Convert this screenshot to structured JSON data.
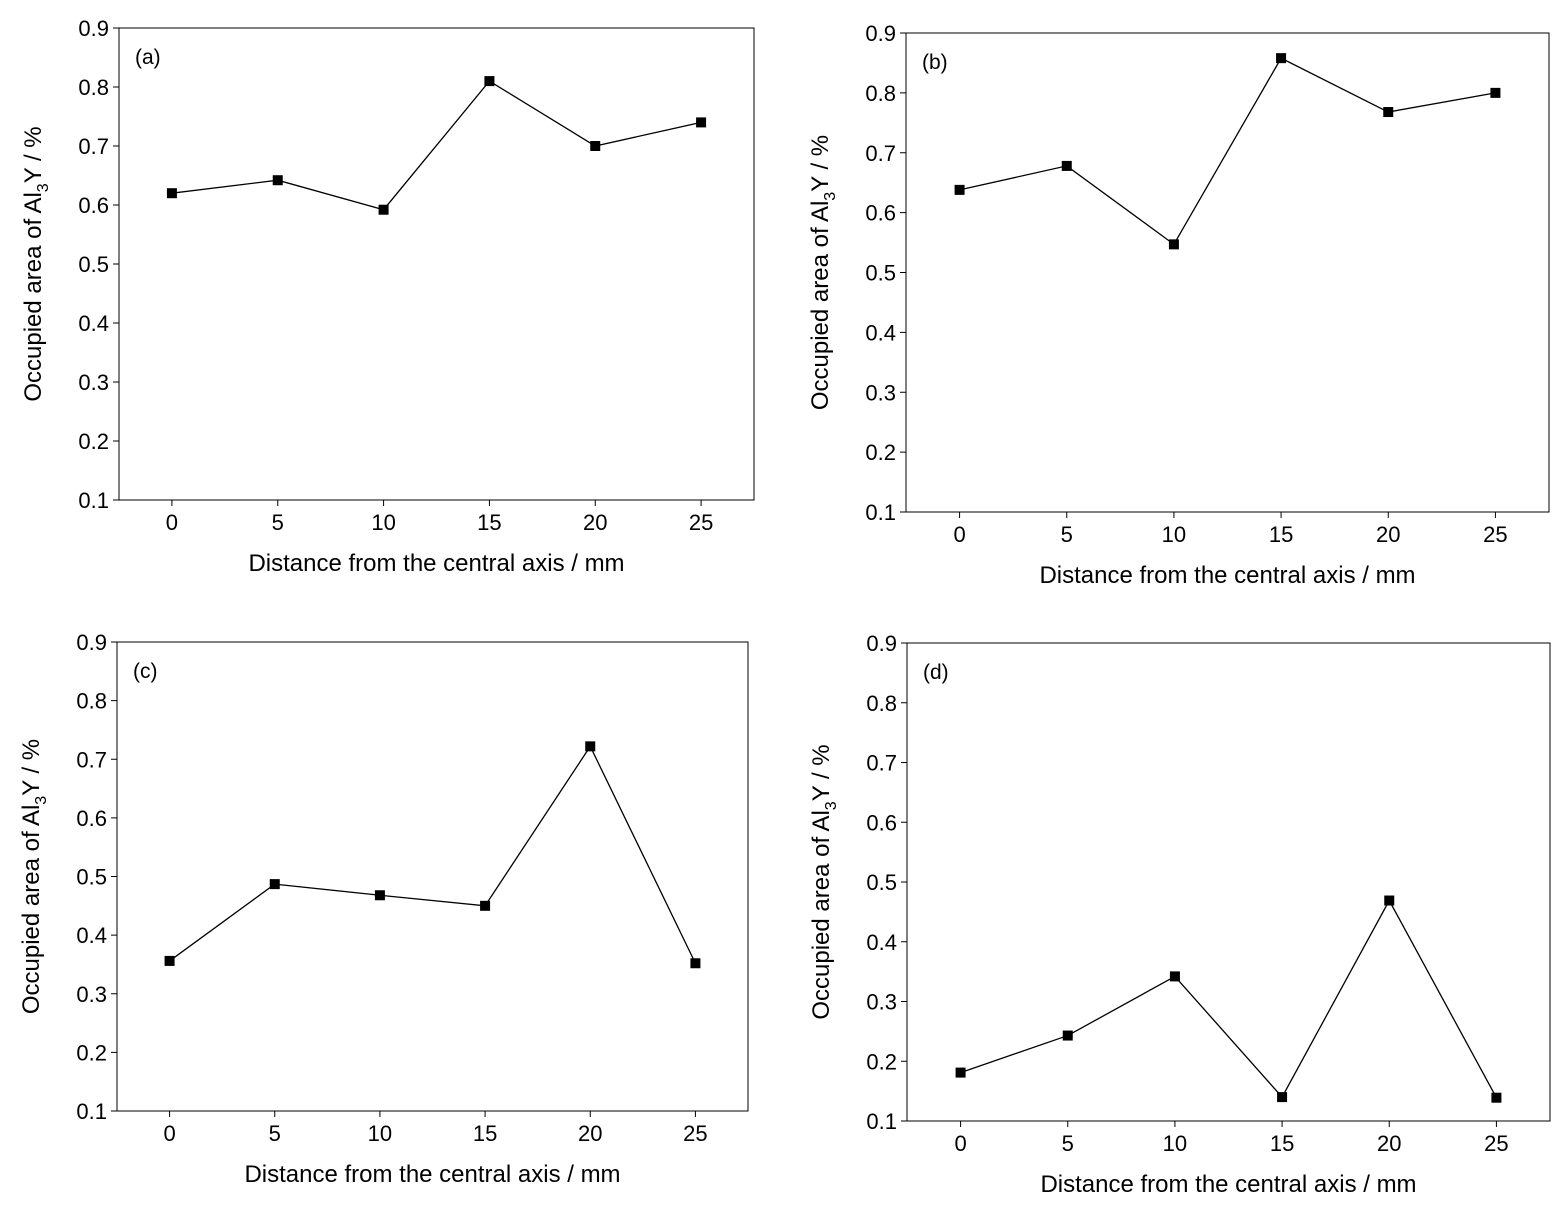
{
  "chart_data": [
    {
      "type": "line",
      "panel_label": "(a)",
      "xlabel": "Distance from the central axis / mm",
      "ylabel_parts": [
        "Occupied area of Al",
        "3",
        "Y / %"
      ],
      "x": [
        0,
        5,
        10,
        15,
        20,
        25
      ],
      "xticks": [
        0,
        5,
        10,
        15,
        20,
        25
      ],
      "yticks": [
        0.1,
        0.2,
        0.3,
        0.4,
        0.5,
        0.6,
        0.7,
        0.8,
        0.9
      ],
      "xlim": [
        -2.5,
        27.5
      ],
      "ylim": [
        0.1,
        0.9
      ],
      "grid": false,
      "series": [
        {
          "values": [
            0.62,
            0.642,
            0.592,
            0.81,
            0.7,
            0.74
          ]
        }
      ]
    },
    {
      "type": "line",
      "panel_label": "(b)",
      "xlabel": "Distance from the central axis / mm",
      "ylabel_parts": [
        "Occupied area of Al",
        "3",
        "Y / %"
      ],
      "x": [
        0,
        5,
        10,
        15,
        20,
        25
      ],
      "xticks": [
        0,
        5,
        10,
        15,
        20,
        25
      ],
      "yticks": [
        0.1,
        0.2,
        0.3,
        0.4,
        0.5,
        0.6,
        0.7,
        0.8,
        0.9
      ],
      "xlim": [
        -2.5,
        27.5
      ],
      "ylim": [
        0.1,
        0.9
      ],
      "grid": false,
      "series": [
        {
          "values": [
            0.638,
            0.678,
            0.547,
            0.858,
            0.768,
            0.8
          ]
        }
      ]
    },
    {
      "type": "line",
      "panel_label": "(c)",
      "xlabel": "Distance from the central axis / mm",
      "ylabel_parts": [
        "Occupied area of Al",
        "3",
        "Y / %"
      ],
      "x": [
        0,
        5,
        10,
        15,
        20,
        25
      ],
      "xticks": [
        0,
        5,
        10,
        15,
        20,
        25
      ],
      "yticks": [
        0.1,
        0.2,
        0.3,
        0.4,
        0.5,
        0.6,
        0.7,
        0.8,
        0.9
      ],
      "xlim": [
        -2.5,
        27.5
      ],
      "ylim": [
        0.1,
        0.9
      ],
      "grid": false,
      "series": [
        {
          "values": [
            0.356,
            0.487,
            0.468,
            0.45,
            0.722,
            0.352
          ]
        }
      ]
    },
    {
      "type": "line",
      "panel_label": "(d)",
      "xlabel": "Distance from the central axis / mm",
      "ylabel_parts": [
        "Occupied area of Al",
        "3",
        "Y / %"
      ],
      "x": [
        0,
        5,
        10,
        15,
        20,
        25
      ],
      "xticks": [
        0,
        5,
        10,
        15,
        20,
        25
      ],
      "yticks": [
        0.1,
        0.2,
        0.3,
        0.4,
        0.5,
        0.6,
        0.7,
        0.8,
        0.9
      ],
      "xlim": [
        -2.5,
        27.5
      ],
      "ylim": [
        0.1,
        0.9
      ],
      "grid": false,
      "series": [
        {
          "values": [
            0.181,
            0.243,
            0.342,
            0.14,
            0.469,
            0.139
          ]
        }
      ]
    }
  ]
}
